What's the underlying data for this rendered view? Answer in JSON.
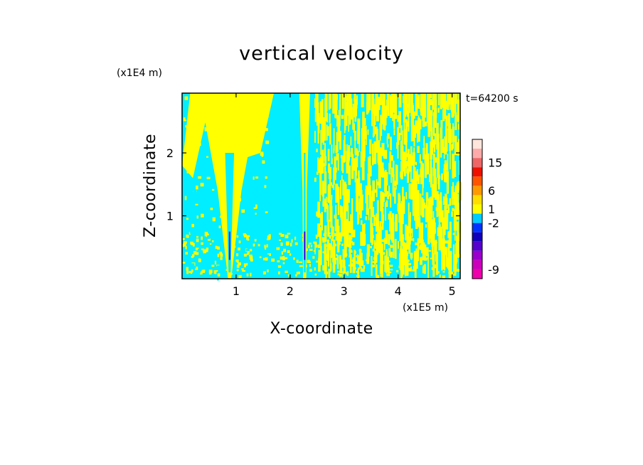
{
  "chart_data": {
    "type": "heatmap",
    "title": "vertical velocity",
    "xlabel": "X-coordinate",
    "ylabel": "Z-coordinate",
    "x_scale_label": "(x1E5 m)",
    "y_scale_label": "(x1E4 m)",
    "time_label": "t=64200 s",
    "xlim": [
      0,
      5.15
    ],
    "ylim": [
      0,
      2.95
    ],
    "xticks": [
      1,
      2,
      3,
      4,
      5
    ],
    "yticks": [
      1,
      2
    ],
    "xtick_labels": [
      "1",
      "2",
      "3",
      "4",
      "5"
    ],
    "ytick_labels": [
      "1",
      "2"
    ],
    "dominant_fields": [
      {
        "name": "weak updraft",
        "color": "#ffff00"
      },
      {
        "name": "weak downdraft",
        "color": "#00eeff"
      }
    ],
    "plumes": [
      {
        "center_x": 0.88,
        "half_width_top": 0.55,
        "color": "#ffff00"
      },
      {
        "center_x": 2.27,
        "half_width_top": 0.1,
        "color": "#ffff00"
      }
    ],
    "colorbar": {
      "levels_bottom_to_top": [
        {
          "color": "#ee00aa"
        },
        {
          "color": "#cc00bb"
        },
        {
          "color": "#9900cc"
        },
        {
          "color": "#5500cc"
        },
        {
          "color": "#1100bb"
        },
        {
          "color": "#0033ff"
        },
        {
          "color": "#00ccff"
        },
        {
          "color": "#ffff00"
        },
        {
          "color": "#ffdd00"
        },
        {
          "color": "#ff9900"
        },
        {
          "color": "#ff5500"
        },
        {
          "color": "#ee1100"
        },
        {
          "color": "#ee6666"
        },
        {
          "color": "#ffaaaa"
        },
        {
          "color": "#ffe6dd"
        }
      ],
      "tick_labels": [
        {
          "label": "15",
          "level_index": 12.5
        },
        {
          "label": "6",
          "level_index": 9.5
        },
        {
          "label": "1",
          "level_index": 7.5
        },
        {
          "label": "-2",
          "level_index": 6.0
        },
        {
          "label": "-9",
          "level_index": 1.0
        }
      ]
    }
  }
}
